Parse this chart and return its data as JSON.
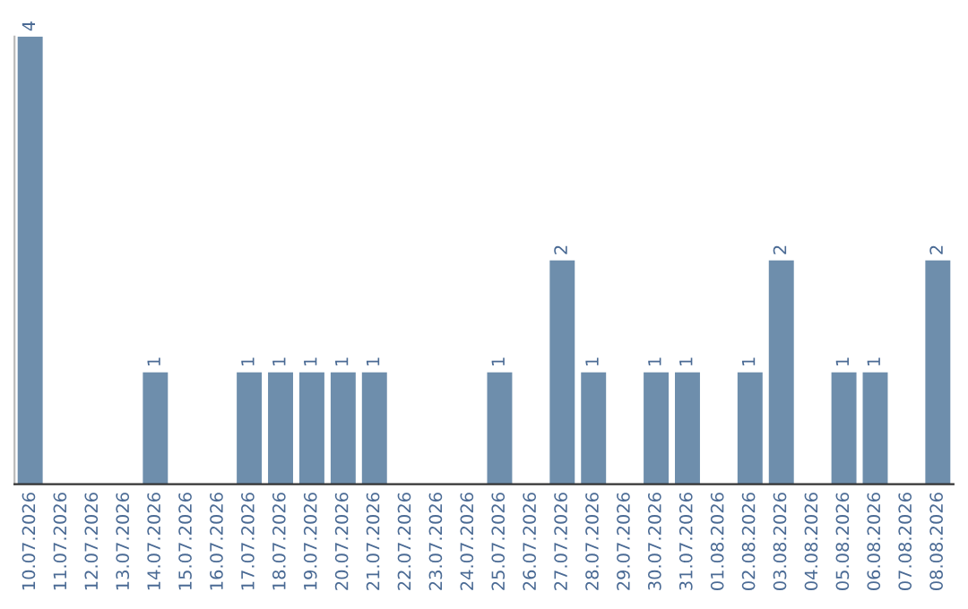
{
  "chart_data": {
    "type": "bar",
    "categories": [
      "10.07.2026",
      "11.07.2026",
      "12.07.2026",
      "13.07.2026",
      "14.07.2026",
      "15.07.2026",
      "16.07.2026",
      "17.07.2026",
      "18.07.2026",
      "19.07.2026",
      "20.07.2026",
      "21.07.2026",
      "22.07.2026",
      "23.07.2026",
      "24.07.2026",
      "25.07.2026",
      "26.07.2026",
      "27.07.2026",
      "28.07.2026",
      "29.07.2026",
      "30.07.2026",
      "31.07.2026",
      "01.08.2026",
      "02.08.2026",
      "03.08.2026",
      "04.08.2026",
      "05.08.2026",
      "06.08.2026",
      "07.08.2026",
      "08.08.2026"
    ],
    "values": [
      4,
      0,
      0,
      0,
      1,
      0,
      0,
      1,
      1,
      1,
      1,
      1,
      0,
      0,
      0,
      1,
      0,
      2,
      1,
      0,
      1,
      1,
      0,
      1,
      2,
      0,
      1,
      1,
      0,
      2
    ],
    "value_labels": [
      "4",
      null,
      null,
      null,
      "1",
      null,
      null,
      "1",
      "1",
      "1",
      "1",
      "1",
      null,
      null,
      null,
      "1",
      null,
      "2",
      "1",
      null,
      "1",
      "1",
      null,
      "1",
      "2",
      null,
      "1",
      "1",
      null,
      "2"
    ],
    "color": "#6e8eac",
    "tick_labels": "x",
    "grid": false,
    "legend": false
  }
}
